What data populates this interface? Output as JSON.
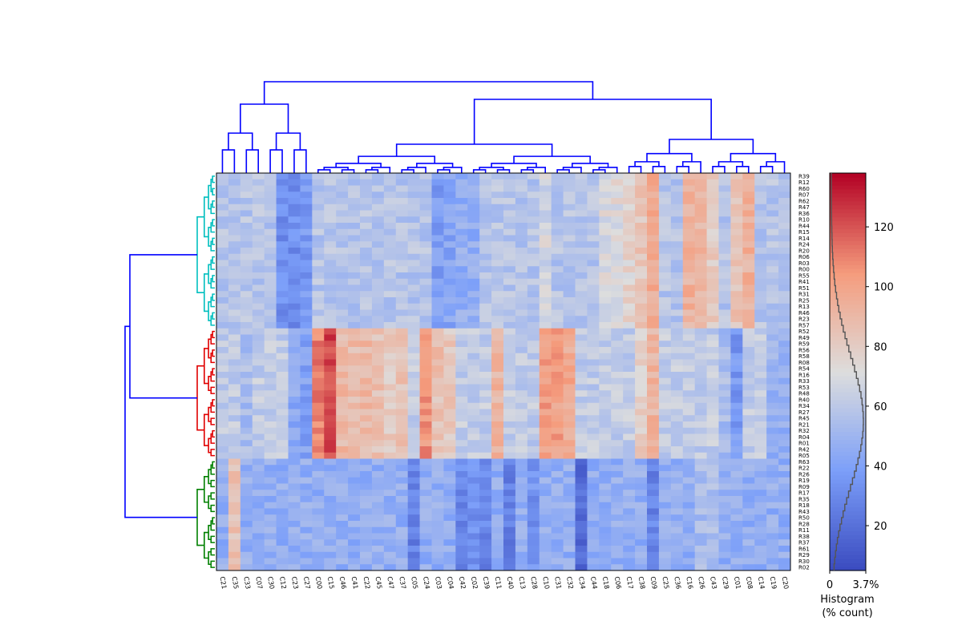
{
  "chart_data": {
    "type": "heatmap",
    "title": "",
    "colormap": "coolwarm",
    "color_range": [
      5,
      138
    ],
    "row_labels": [
      "R39",
      "R12",
      "R60",
      "R07",
      "R62",
      "R47",
      "R36",
      "R10",
      "R44",
      "R15",
      "R14",
      "R24",
      "R20",
      "R06",
      "R03",
      "R00",
      "R55",
      "R41",
      "R51",
      "R31",
      "R25",
      "R13",
      "R46",
      "R23",
      "R57",
      "R52",
      "R49",
      "R59",
      "R56",
      "R58",
      "R08",
      "R54",
      "R16",
      "R33",
      "R53",
      "R48",
      "R40",
      "R34",
      "R27",
      "R45",
      "R21",
      "R32",
      "R04",
      "R01",
      "R42",
      "R05",
      "R63",
      "R22",
      "R26",
      "R19",
      "R09",
      "R17",
      "R35",
      "R18",
      "R43",
      "R50",
      "R28",
      "R11",
      "R38",
      "R37",
      "R61",
      "R29",
      "R30",
      "R02"
    ],
    "col_labels": [
      "C21",
      "C35",
      "C33",
      "C07",
      "C30",
      "C12",
      "C23",
      "C27",
      "C00",
      "C15",
      "C46",
      "C41",
      "C22",
      "C45",
      "C47",
      "C37",
      "C05",
      "C24",
      "C03",
      "C04",
      "C42",
      "C02",
      "C39",
      "C11",
      "C40",
      "C13",
      "C28",
      "C10",
      "C31",
      "C32",
      "C34",
      "C44",
      "C18",
      "C06",
      "C17",
      "C38",
      "C09",
      "C25",
      "C36",
      "C16",
      "C26",
      "C43",
      "C29",
      "C01",
      "C08",
      "C14",
      "C19",
      "C20"
    ],
    "row_clusters": [
      {
        "name": "cyan",
        "color": "#00bfbf",
        "rows": 25
      },
      {
        "name": "red",
        "color": "#e00000",
        "rows": 21
      },
      {
        "name": "green",
        "color": "#008000",
        "rows": 18
      }
    ],
    "dendrogram_link_color": "#0000ff",
    "colorbar": {
      "ticks": [
        20,
        40,
        60,
        80,
        100,
        120
      ],
      "histogram_xlabel": "Histogram\n(% count)",
      "histogram_xticks": [
        "0",
        "3.7%"
      ]
    },
    "grid": false
  },
  "colors": {
    "low": "#3b4cc0",
    "mid": "#dddddd",
    "high": "#b40426",
    "histogram_line": "#555555"
  }
}
